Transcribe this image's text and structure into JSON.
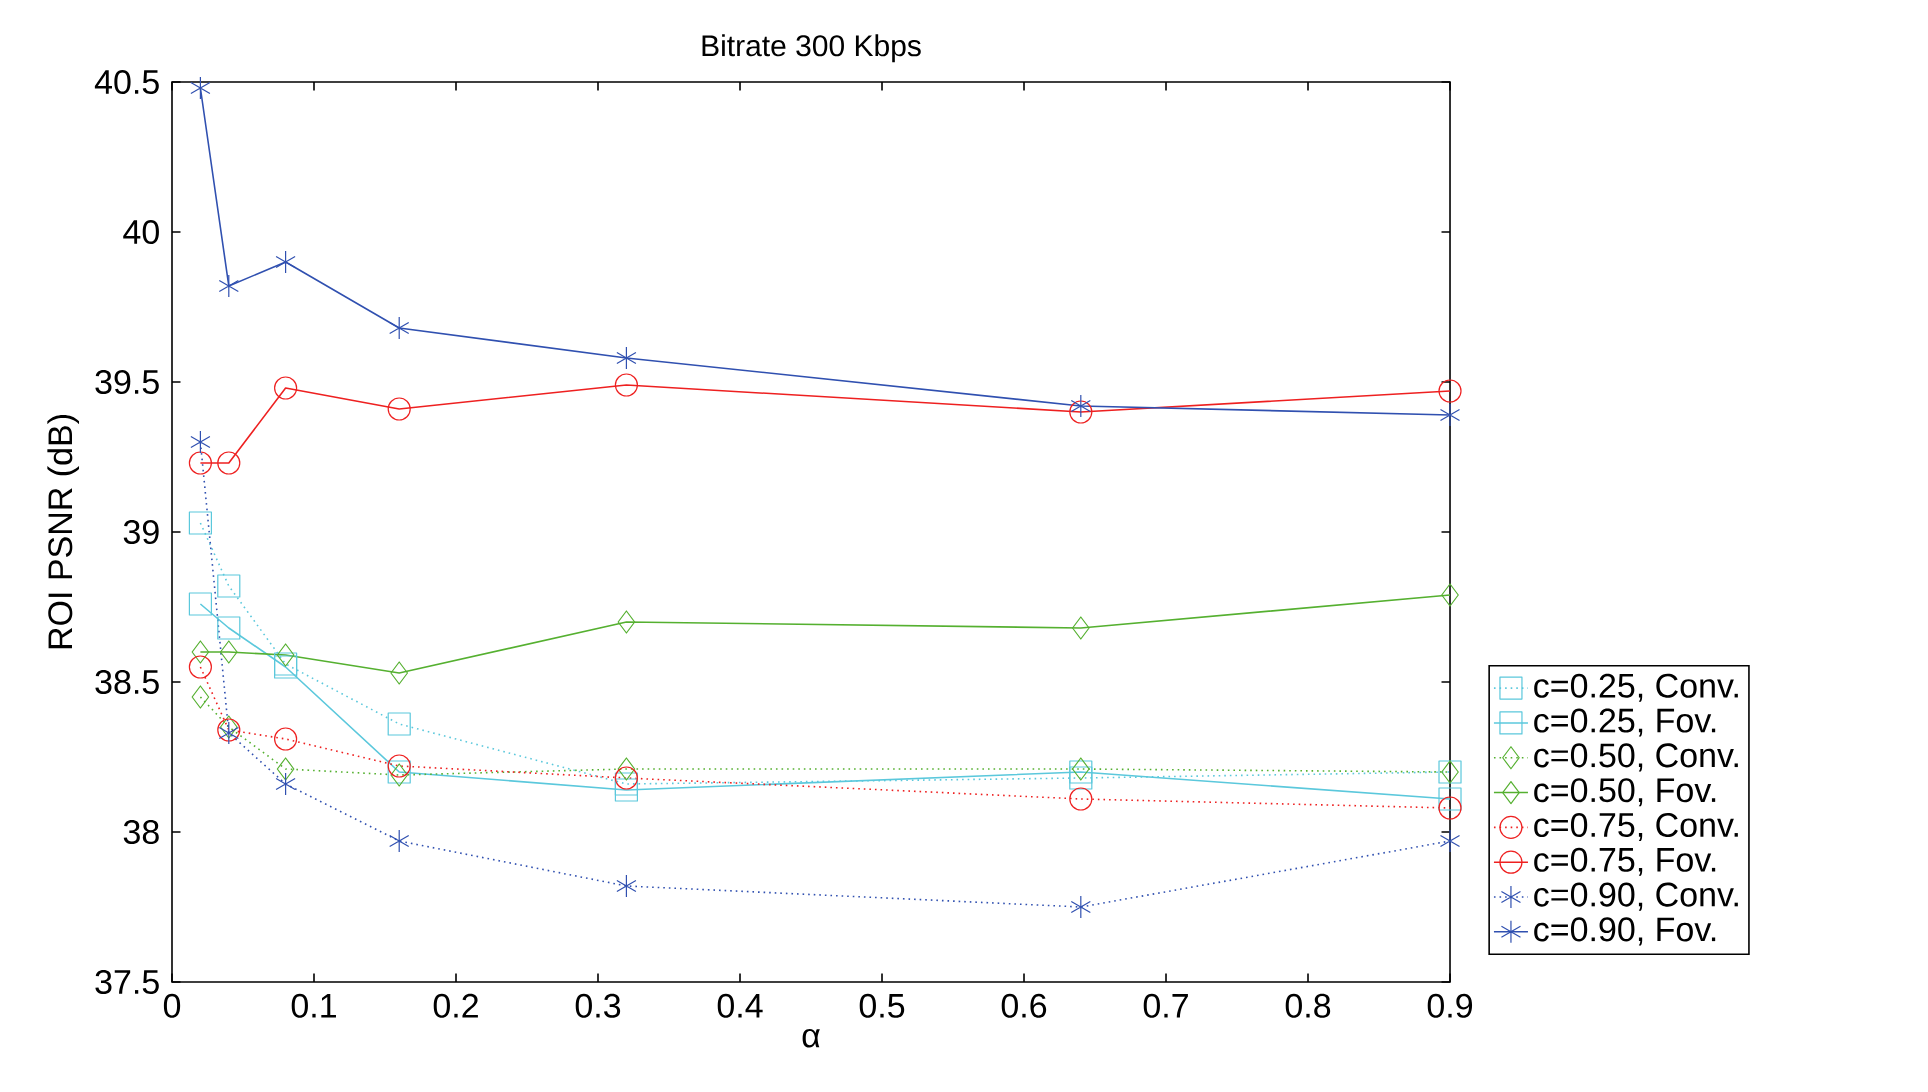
{
  "chart_data": {
    "type": "line",
    "title": "Bitrate 300 Kbps",
    "xlabel": "α",
    "ylabel": "ROI PSNR (dB)",
    "x": [
      0.02,
      0.04,
      0.08,
      0.16,
      0.32,
      0.64,
      0.9
    ],
    "xlim": [
      0,
      0.9
    ],
    "xticks": [
      0,
      0.1,
      0.2,
      0.3,
      0.4,
      0.5,
      0.6,
      0.7,
      0.8,
      0.9
    ],
    "ylim": [
      37.5,
      40.5
    ],
    "yticks": [
      37.5,
      38,
      38.5,
      39,
      39.5,
      40,
      40.5
    ],
    "grid": false,
    "legend": "right",
    "series": [
      {
        "name": "c=0.25, Conv.",
        "color": "#5bc8dc",
        "marker": "square",
        "line_style": "dotted",
        "values": [
          39.03,
          38.82,
          38.56,
          38.36,
          38.16,
          38.18,
          38.2
        ]
      },
      {
        "name": "c=0.25, Fov.",
        "color": "#5bc8dc",
        "marker": "square",
        "line_style": "solid",
        "values": [
          38.76,
          38.68,
          38.55,
          38.2,
          38.14,
          38.2,
          38.11
        ]
      },
      {
        "name": "c=0.50, Conv.",
        "color": "#55b030",
        "marker": "diamond",
        "line_style": "dotted",
        "values": [
          38.45,
          38.35,
          38.21,
          38.19,
          38.21,
          38.21,
          38.2
        ]
      },
      {
        "name": "c=0.50, Fov.",
        "color": "#55b030",
        "marker": "diamond",
        "line_style": "solid",
        "values": [
          38.6,
          38.6,
          38.59,
          38.53,
          38.7,
          38.68,
          38.79
        ]
      },
      {
        "name": "c=0.75, Conv.",
        "color": "#ee2020",
        "marker": "circle",
        "line_style": "dotted",
        "values": [
          38.55,
          38.34,
          38.31,
          38.22,
          38.18,
          38.11,
          38.08
        ]
      },
      {
        "name": "c=0.75, Fov.",
        "color": "#ee2020",
        "marker": "circle",
        "line_style": "solid",
        "values": [
          39.23,
          39.23,
          39.48,
          39.41,
          39.49,
          39.4,
          39.47
        ]
      },
      {
        "name": "c=0.90, Conv.",
        "color": "#3050b0",
        "marker": "cross",
        "line_style": "dotted",
        "values": [
          39.3,
          38.33,
          38.16,
          37.97,
          37.82,
          37.75,
          37.97
        ]
      },
      {
        "name": "c=0.90, Fov.",
        "color": "#3050b0",
        "marker": "cross",
        "line_style": "solid",
        "values": [
          40.48,
          39.82,
          39.9,
          39.68,
          39.58,
          39.42,
          39.39
        ]
      }
    ]
  }
}
